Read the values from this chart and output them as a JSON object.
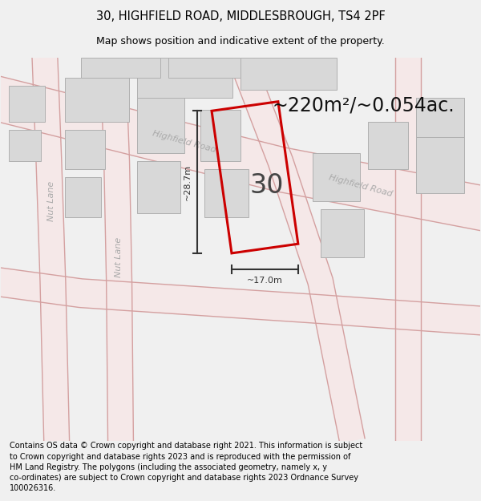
{
  "title_line1": "30, HIGHFIELD ROAD, MIDDLESBROUGH, TS4 2PF",
  "title_line2": "Map shows position and indicative extent of the property.",
  "area_text": "~220m²/~0.054ac.",
  "property_number": "30",
  "dim_width": "~17.0m",
  "dim_height": "~28.7m",
  "footer_text": "Contains OS data © Crown copyright and database right 2021. This information is subject to Crown copyright and database rights 2023 and is reproduced with the permission of HM Land Registry. The polygons (including the associated geometry, namely x, y co-ordinates) are subject to Crown copyright and database rights 2023 Ordnance Survey 100026316.",
  "bg_color": "#f0f0f0",
  "map_bg": "#ffffff",
  "road_border_color": "#d4a0a0",
  "road_fill_color": "#f5e8e8",
  "property_outline_color": "#cc0000",
  "building_fill": "#d8d8d8",
  "building_stroke": "#b0b0b0",
  "road_label_color": "#aaaaaa",
  "dim_line_color": "#333333",
  "title_fontsize": 10.5,
  "subtitle_fontsize": 9,
  "area_fontsize": 17,
  "prop_num_fontsize": 24,
  "dim_fontsize": 8,
  "road_label_fontsize": 8,
  "footer_fontsize": 7
}
